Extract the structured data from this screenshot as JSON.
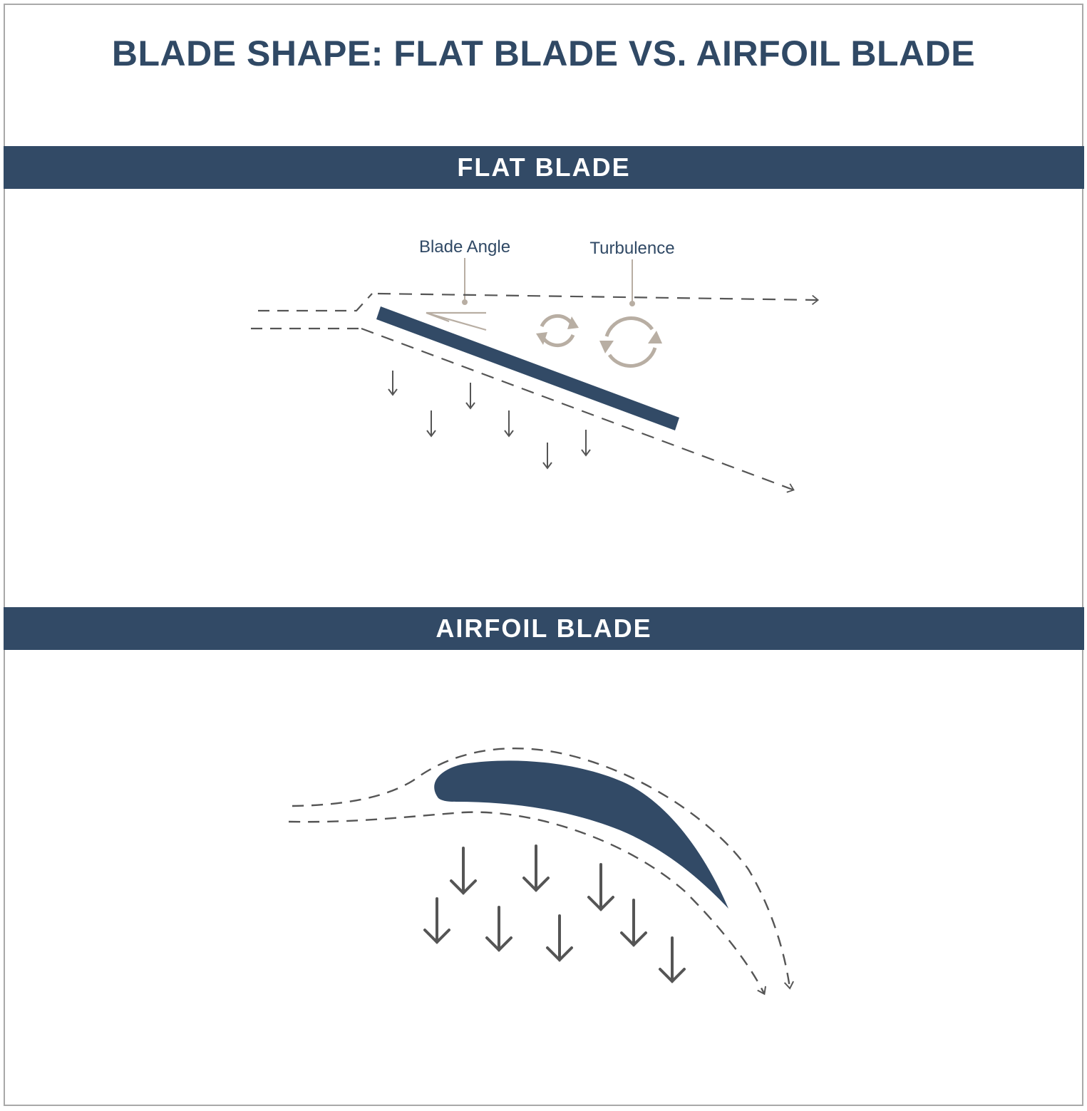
{
  "title": "BLADE SHAPE: FLAT BLADE VS. AIRFOIL BLADE",
  "sections": {
    "flat": {
      "header": "FLAT BLADE",
      "labels": {
        "blade_angle": "Blade Angle",
        "turbulence": "Turbulence"
      }
    },
    "airfoil": {
      "header": "AIRFOIL BLADE"
    }
  },
  "colors": {
    "navy": "#324a66",
    "flow_line": "#555555",
    "annotation": "#b8aea3",
    "frame": "#a9a9a9"
  },
  "icons": [
    "turbulence-swirl-icon",
    "arrow-down-icon",
    "arrow-head-icon"
  ]
}
